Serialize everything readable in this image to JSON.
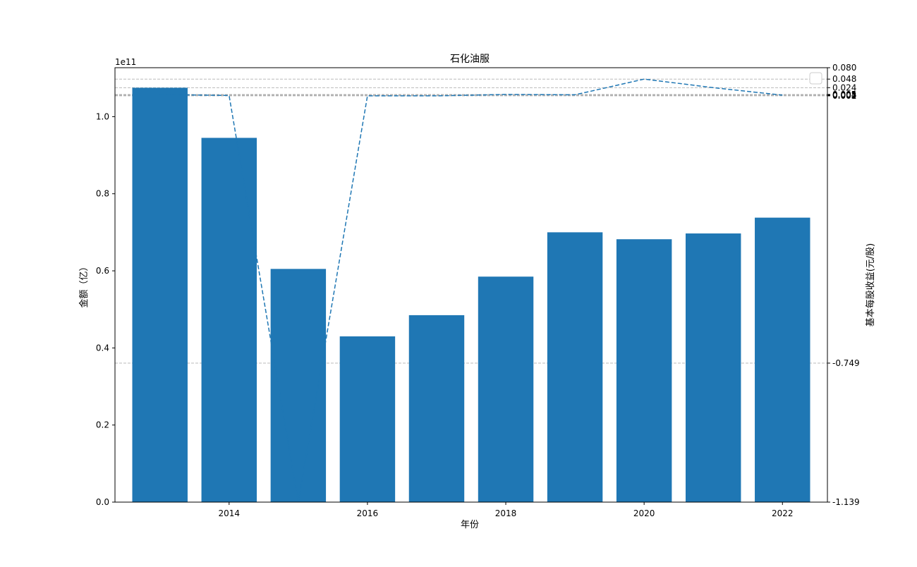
{
  "chart_data": {
    "type": "bar",
    "title": "石化油服",
    "xlabel": "年份",
    "ylabel_left": "金额（亿）",
    "ylabel_right": "基本每股收益(元/股)",
    "left_axis_offset_label": "1e11",
    "x": [
      2013,
      2014,
      2015,
      2016,
      2017,
      2018,
      2019,
      2020,
      2021,
      2022
    ],
    "x_tick_labels": [
      "2014",
      "2016",
      "2018",
      "2020",
      "2022"
    ],
    "values": [
      107500000000,
      94500000000,
      60500000000,
      43000000000,
      48500000000,
      58500000000,
      70000000000,
      68200000000,
      69700000000,
      73800000000
    ],
    "ylim_left": [
      0,
      112700000000
    ],
    "y_ticks_left": [
      "0.0",
      "0.2",
      "0.4",
      "0.6",
      "0.8",
      "1.0"
    ],
    "y_ticks_left_values": [
      0,
      0.2,
      0.4,
      0.6,
      0.8,
      1.0
    ],
    "eps": [
      0.005,
      0.002,
      -1.139,
      0.001,
      0.001,
      0.005,
      0.004,
      0.048,
      0.024,
      0.003
    ],
    "ylim_right": [
      -1.139,
      0.08
    ],
    "y_ticks_right": [
      "0.080",
      "0.048",
      "0.024",
      "0.005",
      "0.004",
      "0.003",
      "0.002",
      "0.001",
      "-0.749",
      "-1.139"
    ],
    "y_ticks_right_values": [
      0.08,
      0.048,
      0.024,
      0.005,
      0.004,
      0.003,
      0.002,
      0.001,
      -0.749,
      -1.139
    ],
    "right_gridlines": [
      0.048,
      0.024,
      0.005,
      0.004,
      0.003,
      0.002,
      0.001,
      -0.749
    ],
    "bar_color": "#1f77b4",
    "grid_color": "#b0b0b0",
    "legend": "top-right"
  }
}
